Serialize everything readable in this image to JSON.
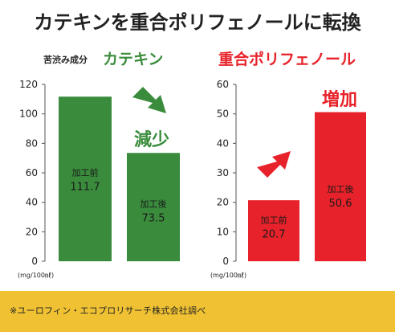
{
  "headline": "カテキンを重合ポリフェノールに転換",
  "footnote": "※ユーロフィン・エコプロリサーチ株式会社調べ",
  "colors": {
    "green": "#3a8c3c",
    "red": "#e8222a",
    "footer": "#f0c233",
    "text": "#222222"
  },
  "chart_data": [
    {
      "type": "bar",
      "title": "カテキン",
      "title_prefix": "苦渋み成分",
      "unit_label": "(mg/100㎖)",
      "ylim": [
        0,
        120
      ],
      "yticks": [
        "0",
        "20",
        "40",
        "60",
        "80",
        "100",
        "120"
      ],
      "categories": [
        "加工前",
        "加工後"
      ],
      "values": [
        111.7,
        73.5
      ],
      "value_labels": [
        "111.7",
        "73.5"
      ],
      "annotation": "減少",
      "arrow": "down-right",
      "color": "#3a8c3c"
    },
    {
      "type": "bar",
      "title": "重合ポリフェノール",
      "unit_label": "(mg/100㎖)",
      "ylim": [
        0,
        60
      ],
      "yticks": [
        "0",
        "10",
        "20",
        "30",
        "40",
        "50",
        "60"
      ],
      "categories": [
        "加工前",
        "加工後"
      ],
      "values": [
        20.7,
        50.6
      ],
      "value_labels": [
        "20.7",
        "50.6"
      ],
      "annotation": "増加",
      "arrow": "up-right",
      "color": "#e8222a"
    }
  ]
}
